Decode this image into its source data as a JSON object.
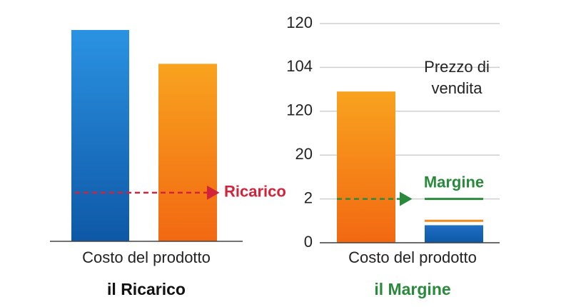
{
  "chart_data": [
    {
      "type": "bar",
      "xlabel": "Costo del prodotto",
      "caption": "il Ricarico",
      "values": [
        100,
        84
      ],
      "colors": [
        [
          "#2b92e2",
          "#0e58a6"
        ],
        [
          "#f8a31f",
          "#f26812"
        ]
      ],
      "ylim": [
        0,
        100
      ],
      "annotation": {
        "text": "Ricarico",
        "value": 23,
        "color": "#d3233b"
      }
    },
    {
      "type": "bar",
      "xlabel": "Costo del prodotto",
      "caption": "il Margine",
      "values": [
        69,
        8
      ],
      "colors": [
        [
          "#f8a31f",
          "#f26812"
        ],
        [
          "#1f6fc4",
          "#0e58a6"
        ]
      ],
      "ylim": [
        0,
        100
      ],
      "yticks": [
        0,
        {
          "value": 20,
          "label": "2"
        },
        {
          "value": 40,
          "label": "20"
        },
        {
          "value": 60,
          "label": "120"
        },
        {
          "value": 80,
          "label": "104"
        },
        {
          "value": 100,
          "label": "120"
        }
      ],
      "grid": true,
      "marker": {
        "value": 10,
        "color": "#f28a1e"
      },
      "annotation": {
        "text": "Margine",
        "value": 20,
        "color": "#2a8a3c"
      },
      "note": [
        "Prezzo di",
        "vendita"
      ]
    }
  ]
}
